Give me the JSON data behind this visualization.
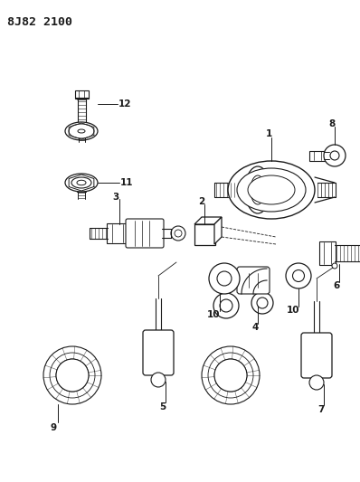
{
  "title": "8J82 2100",
  "background_color": "#ffffff",
  "line_color": "#1a1a1a",
  "fig_w": 3.98,
  "fig_h": 5.33,
  "dpi": 100
}
